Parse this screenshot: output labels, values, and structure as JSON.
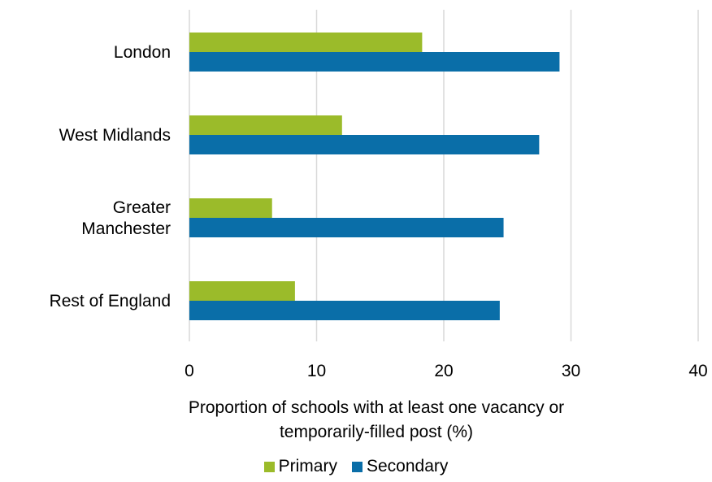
{
  "chart_data": {
    "type": "bar",
    "orientation": "horizontal",
    "categories": [
      "London",
      "West Midlands",
      "Greater\nManchester",
      "Rest of England"
    ],
    "series": [
      {
        "name": "Primary",
        "color": "#9bbb2a",
        "values": [
          18.3,
          12.0,
          6.5,
          8.3
        ]
      },
      {
        "name": "Secondary",
        "color": "#0a6ea8",
        "values": [
          29.1,
          27.5,
          24.7,
          24.4
        ]
      }
    ],
    "title": "",
    "xlabel": "Proportion of schools with at least one vacancy or\ntemporarily-filled post (%)",
    "ylabel": "",
    "xlim": [
      0,
      40
    ],
    "xticks": [
      0,
      10,
      20,
      30,
      40
    ],
    "grid": true,
    "gridline_color": "#d9d9d9",
    "legend_position": "bottom"
  }
}
